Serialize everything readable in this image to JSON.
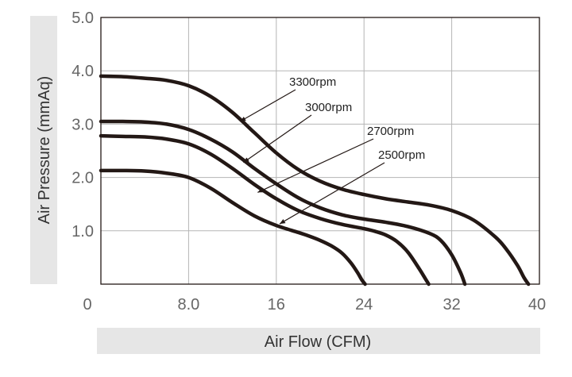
{
  "chart_data": {
    "type": "line",
    "xlabel": "Air Flow (CFM)",
    "ylabel": "Air Pressure (mmAq)",
    "xlim": [
      0,
      40
    ],
    "ylim": [
      0,
      5
    ],
    "x_ticks": [
      "0",
      "8.0",
      "16",
      "24",
      "32",
      "40"
    ],
    "x_tick_values": [
      0,
      8,
      16,
      24,
      32,
      40
    ],
    "y_ticks": [
      "1.0",
      "2.0",
      "3.0",
      "4.0",
      "5.0"
    ],
    "y_tick_values": [
      1,
      2,
      3,
      4,
      5
    ],
    "grid": true,
    "colors": {
      "curve": "#231815",
      "grid": "#b5b5b5",
      "axis": "#231815",
      "label_band": "#e6e6e6",
      "tick_text": "#666666",
      "annotation_text": "#222222"
    },
    "series": [
      {
        "name": "3300rpm",
        "label_target": [
          12.7,
          3.05
        ],
        "x": [
          0,
          2,
          4,
          6,
          8,
          10,
          12,
          14,
          16,
          18,
          20,
          22,
          24,
          26,
          28,
          30,
          32,
          34,
          36,
          37,
          38,
          38.6,
          39.0
        ],
        "y": [
          3.9,
          3.89,
          3.86,
          3.82,
          3.72,
          3.52,
          3.22,
          2.84,
          2.46,
          2.15,
          1.93,
          1.78,
          1.68,
          1.6,
          1.54,
          1.48,
          1.38,
          1.2,
          0.88,
          0.65,
          0.35,
          0.12,
          0
        ]
      },
      {
        "name": "3000rpm",
        "label_target": [
          13.0,
          2.28
        ],
        "x": [
          0,
          2,
          4,
          6,
          8,
          10,
          12,
          14,
          16,
          18,
          20,
          22,
          24,
          26,
          28,
          30,
          31,
          32,
          32.8,
          33.2
        ],
        "y": [
          3.05,
          3.05,
          3.04,
          3.0,
          2.9,
          2.72,
          2.48,
          2.17,
          1.88,
          1.62,
          1.43,
          1.3,
          1.22,
          1.16,
          1.08,
          0.95,
          0.82,
          0.55,
          0.22,
          0
        ]
      },
      {
        "name": "2700rpm",
        "label_target": [
          14.3,
          1.72
        ],
        "x": [
          0,
          2,
          4,
          6,
          8,
          10,
          12,
          14,
          16,
          18,
          20,
          22,
          24,
          25,
          26,
          27,
          28,
          29,
          29.6,
          29.9
        ],
        "y": [
          2.78,
          2.77,
          2.76,
          2.72,
          2.63,
          2.44,
          2.17,
          1.87,
          1.6,
          1.38,
          1.23,
          1.12,
          1.04,
          0.99,
          0.92,
          0.8,
          0.6,
          0.3,
          0.1,
          0
        ]
      },
      {
        "name": "2500rpm",
        "label_target": [
          16.3,
          1.13
        ],
        "x": [
          0,
          2,
          4,
          6,
          8,
          10,
          12,
          14,
          16,
          18,
          19,
          20,
          21,
          22,
          22.8,
          23.4,
          23.8,
          24.1
        ],
        "y": [
          2.13,
          2.13,
          2.12,
          2.08,
          2.0,
          1.8,
          1.53,
          1.28,
          1.1,
          0.97,
          0.9,
          0.82,
          0.72,
          0.58,
          0.4,
          0.22,
          0.08,
          0
        ]
      }
    ]
  }
}
